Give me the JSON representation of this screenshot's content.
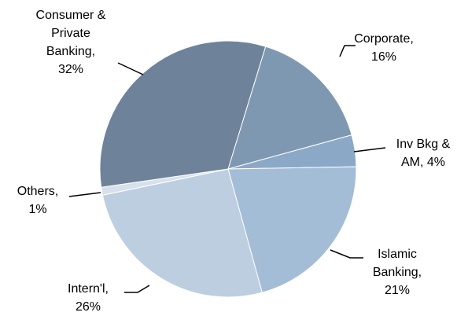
{
  "chart_data": {
    "type": "pie",
    "categories": [
      "Corporate,",
      "Inv Bkg & AM,",
      "Islamic Banking,",
      "Intern'l,",
      "Others,",
      "Consumer & Private Banking,"
    ],
    "values": [
      16,
      4,
      21,
      26,
      1,
      32
    ],
    "value_labels": [
      "16%",
      "4%",
      "21%",
      "26%",
      "1%",
      "32%"
    ],
    "colors": [
      "#7f98b2",
      "#8ba9c7",
      "#a4bdd7",
      "#bdcee1",
      "#d7e1ed",
      "#6e8399"
    ]
  }
}
